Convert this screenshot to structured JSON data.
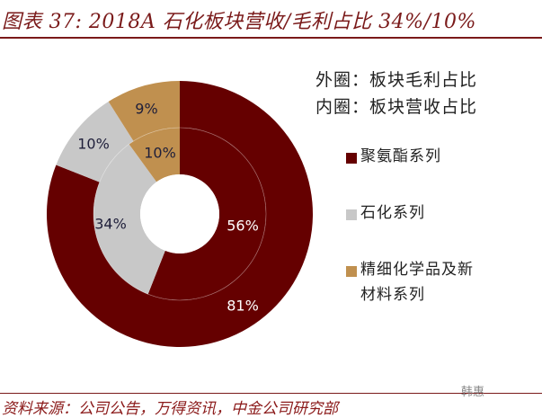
{
  "header": {
    "title": "图表 37: 2018A 石化板块营收/毛利占比 34%/10%"
  },
  "footer": {
    "source": "资料来源：公司公告，万得资讯，中金公司研究部",
    "watermark": "韩惠"
  },
  "legend": {
    "outer_note": "外圈：板块毛利占比",
    "inner_note": "内圈：板块营收占比",
    "items": [
      {
        "label": "聚氨酯系列",
        "color": "#650000"
      },
      {
        "label": "石化系列",
        "color": "#c8c8c8"
      },
      {
        "label": "精细化学品及新材料系列",
        "color": "#c0904f"
      }
    ]
  },
  "chart_data": {
    "type": "pie",
    "subtype": "nested-donut",
    "title": "图表 37: 2018A 石化板块营收/毛利占比 34%/10%",
    "categories": [
      "聚氨酯系列",
      "石化系列",
      "精细化学品及新材料系列"
    ],
    "colors": [
      "#650000",
      "#c8c8c8",
      "#c0904f"
    ],
    "series": [
      {
        "name": "外圈：板块毛利占比",
        "ring": "outer",
        "values": [
          81,
          10,
          9
        ],
        "labels": [
          "81%",
          "10%",
          "9%"
        ]
      },
      {
        "name": "内圈：板块营收占比",
        "ring": "inner",
        "values": [
          56,
          34,
          10
        ],
        "labels": [
          "56%",
          "34%",
          "10%"
        ]
      }
    ],
    "legend_position": "right"
  }
}
